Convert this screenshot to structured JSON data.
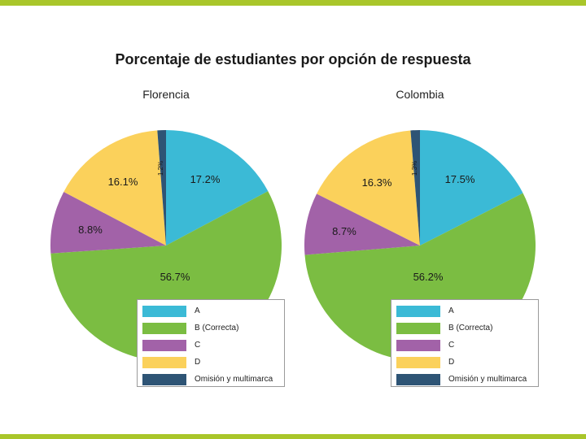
{
  "title": "Porcentaje de estudiantes por opción de respuesta",
  "colors": {
    "A": "#3bbad6",
    "B": "#7bbd42",
    "C": "#a262a8",
    "D": "#fbd15b",
    "E": "#2e5475",
    "band": "#a9c62a"
  },
  "legend": {
    "items": [
      {
        "label": "A",
        "color": "#3bbad6"
      },
      {
        "label": "B (Correcta)",
        "color": "#7bbd42"
      },
      {
        "label": "C",
        "color": "#a262a8"
      },
      {
        "label": "D",
        "color": "#fbd15b"
      },
      {
        "label": "Omisión y multimarca",
        "color": "#2e5475"
      }
    ]
  },
  "chart_data": [
    {
      "type": "pie",
      "title": "Florencia",
      "categories": [
        "A",
        "B (Correcta)",
        "C",
        "D",
        "Omisión y multimarca"
      ],
      "values": [
        17.2,
        56.7,
        8.8,
        16.1,
        1.2
      ],
      "labels": [
        "17.2%",
        "56.7%",
        "8.8%",
        "16.1%",
        "1.2%"
      ]
    },
    {
      "type": "pie",
      "title": "Colombia",
      "categories": [
        "A",
        "B (Correcta)",
        "C",
        "D",
        "Omisión y multimarca"
      ],
      "values": [
        17.5,
        56.2,
        8.7,
        16.3,
        1.3
      ],
      "labels": [
        "17.5%",
        "56.2%",
        "8.7%",
        "16.3%",
        "1.3%"
      ]
    }
  ]
}
